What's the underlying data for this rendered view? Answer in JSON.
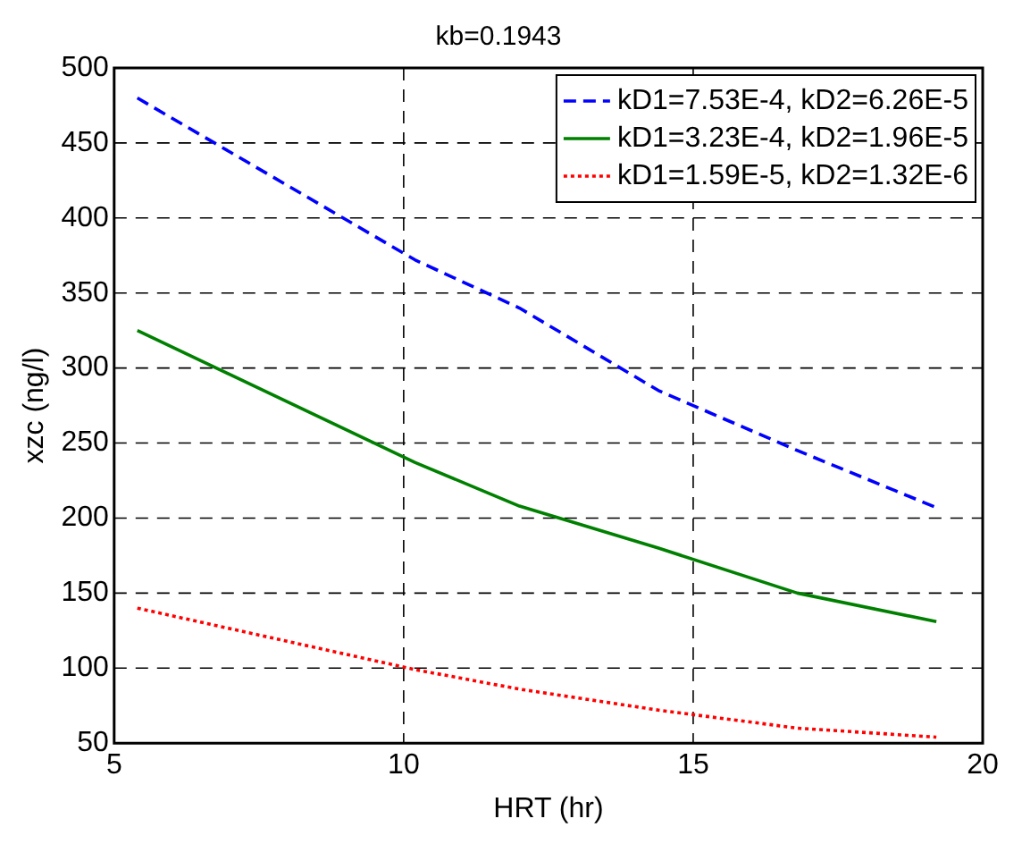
{
  "chart_data": {
    "type": "line",
    "title": "kb=0.1943",
    "xlabel": "HRT (hr)",
    "ylabel": "xzc (ng/l)",
    "xlim": [
      5,
      20
    ],
    "xticks": [
      5,
      10,
      15,
      20
    ],
    "ylim": [
      50,
      500
    ],
    "yticks": [
      50,
      100,
      150,
      200,
      250,
      300,
      350,
      400,
      450,
      500
    ],
    "grid": true,
    "legend": "top right",
    "marker": "none",
    "series": [
      {
        "name": "kD1=7.53E-4, kD2=6.26E-5",
        "color": "#0000ff",
        "line_style": "dashed",
        "x": [
          5.4,
          10.2,
          12,
          14.4,
          16.8,
          19.2
        ],
        "values": [
          480,
          372,
          340,
          285,
          245,
          207
        ]
      },
      {
        "name": "kD1=3.23E-4, kD2=1.96E-5",
        "color": "#008000",
        "line_style": "solid",
        "x": [
          5.4,
          10.2,
          12,
          14.4,
          16.8,
          19.2
        ],
        "values": [
          325,
          237,
          208,
          180,
          150,
          131
        ]
      },
      {
        "name": "kD1=1.59E-5, kD2=1.32E-6",
        "color": "#ff0000",
        "line_style": "dotted",
        "x": [
          5.4,
          10.2,
          12,
          14.4,
          16.8,
          19.2
        ],
        "values": [
          140,
          99,
          86,
          72,
          60,
          54
        ]
      }
    ]
  }
}
